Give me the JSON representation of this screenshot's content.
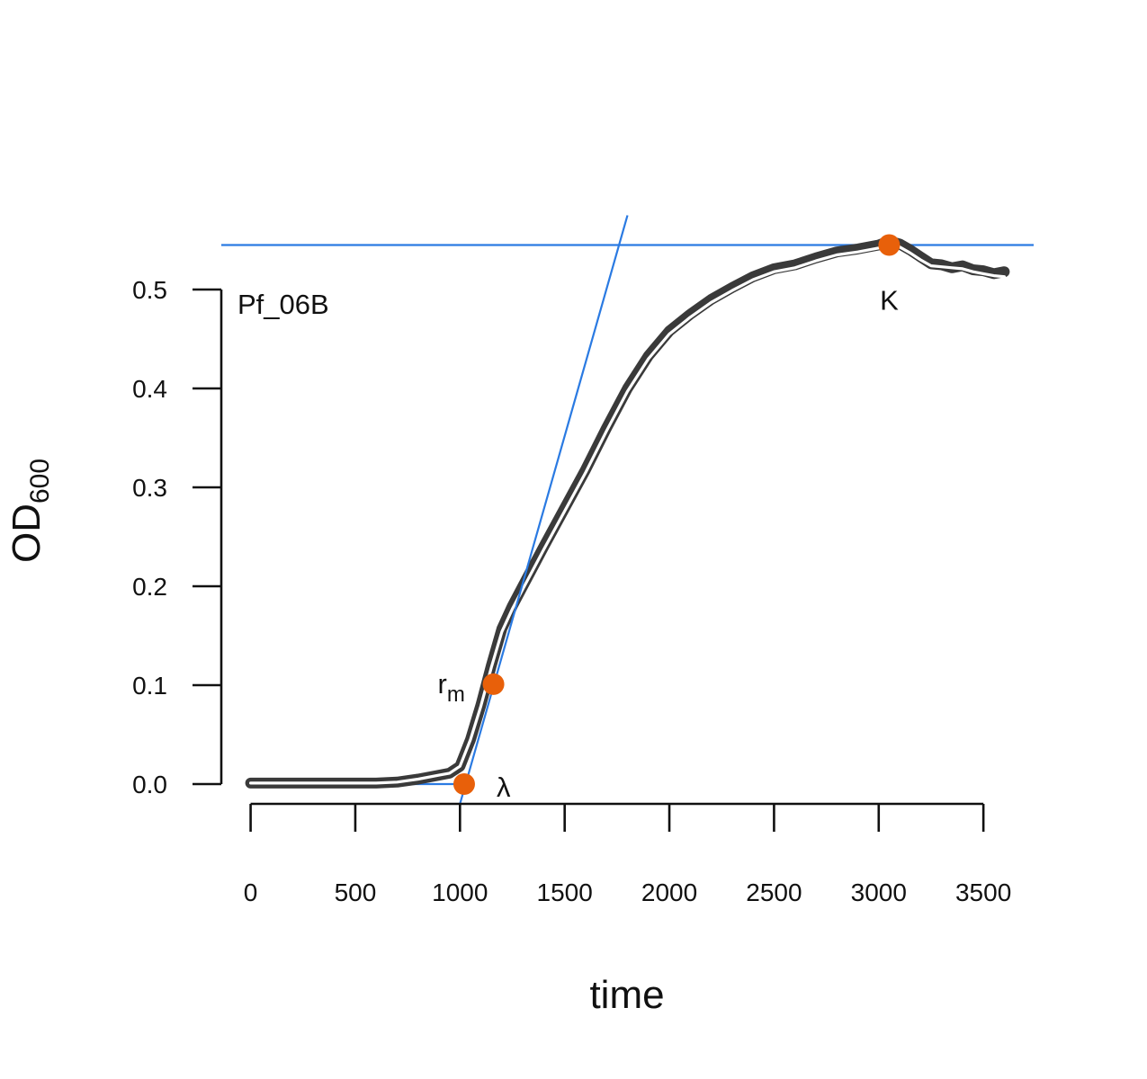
{
  "chart_data": {
    "type": "line",
    "title": "",
    "panel_label": "Pf_06B",
    "xlabel": "time",
    "ylabel": "OD",
    "ylabel_subscript": "600",
    "xlim": [
      -140,
      3740
    ],
    "ylim": [
      -0.02,
      0.57
    ],
    "x_ticks": [
      0,
      500,
      1000,
      1500,
      2000,
      2500,
      3000,
      3500
    ],
    "x_tick_labels": [
      "0",
      "500",
      "1000",
      "1500",
      "2000",
      "2500",
      "3000",
      "3500"
    ],
    "y_ticks": [
      0.0,
      0.1,
      0.2,
      0.3,
      0.4,
      0.5
    ],
    "y_tick_labels": [
      "0.0",
      "0.1",
      "0.2",
      "0.3",
      "0.4",
      "0.5"
    ],
    "grid": false,
    "colors": {
      "data": "#3a3a3a",
      "fit": "#ffffff",
      "tangent": "#2a7ae2",
      "points": "#e8600a"
    },
    "series": [
      {
        "x": [
          0,
          200,
          400,
          600,
          700,
          800,
          900,
          950,
          1000,
          1050,
          1100,
          1150,
          1200,
          1250,
          1300,
          1400,
          1500,
          1600,
          1700,
          1800,
          1900,
          2000,
          2100,
          2200,
          2300,
          2400,
          2500,
          2600,
          2700,
          2800,
          2900,
          3000,
          3050,
          3100,
          3150,
          3200,
          3250,
          3300,
          3350,
          3400,
          3450,
          3500,
          3550,
          3600
        ],
        "values": [
          0.001,
          0.001,
          0.001,
          0.001,
          0.002,
          0.005,
          0.009,
          0.011,
          0.018,
          0.045,
          0.08,
          0.12,
          0.157,
          0.18,
          0.2,
          0.24,
          0.279,
          0.318,
          0.36,
          0.4,
          0.433,
          0.458,
          0.475,
          0.49,
          0.502,
          0.513,
          0.521,
          0.525,
          0.532,
          0.538,
          0.541,
          0.545,
          0.549,
          0.546,
          0.54,
          0.533,
          0.526,
          0.525,
          0.522,
          0.524,
          0.52,
          0.519,
          0.516,
          0.518
        ]
      },
      {
        "x": [
          0,
          200,
          400,
          600,
          700,
          800,
          900,
          950,
          1000,
          1050,
          1100,
          1150,
          1200,
          1250,
          1300,
          1400,
          1500,
          1600,
          1700,
          1800,
          1900,
          2000,
          2100,
          2200,
          2300,
          2400,
          2500,
          2600,
          2700,
          2800,
          2900,
          3000,
          3050,
          3100,
          3150,
          3200,
          3250,
          3300,
          3350,
          3400,
          3450,
          3500,
          3550,
          3600
        ],
        "values": [
          0.001,
          0.001,
          0.001,
          0.001,
          0.002,
          0.005,
          0.009,
          0.011,
          0.018,
          0.045,
          0.079,
          0.118,
          0.154,
          0.177,
          0.197,
          0.237,
          0.276,
          0.315,
          0.357,
          0.397,
          0.43,
          0.455,
          0.472,
          0.487,
          0.499,
          0.51,
          0.518,
          0.522,
          0.529,
          0.535,
          0.538,
          0.542,
          0.545,
          0.543,
          0.537,
          0.53,
          0.524,
          0.523,
          0.522,
          0.521,
          0.518,
          0.516,
          0.514,
          0.513
        ]
      }
    ],
    "tangent_line": {
      "x": [
        1000,
        1800
      ],
      "values": [
        -0.02,
        0.575
      ]
    },
    "lag_line": {
      "x": [
        0,
        1020
      ],
      "values": [
        0,
        0
      ]
    },
    "k_line": {
      "x": [
        -140,
        3740
      ],
      "values": [
        0.545,
        0.545
      ]
    },
    "key_points": [
      {
        "label": "rm",
        "label_main": "r",
        "label_sub": "m",
        "x": 1160,
        "value": 0.101
      },
      {
        "label": "λ",
        "label_main": "λ",
        "label_sub": "",
        "x": 1020,
        "value": 0.0
      },
      {
        "label": "K",
        "label_main": "K",
        "label_sub": "",
        "x": 3050,
        "value": 0.545
      }
    ]
  }
}
